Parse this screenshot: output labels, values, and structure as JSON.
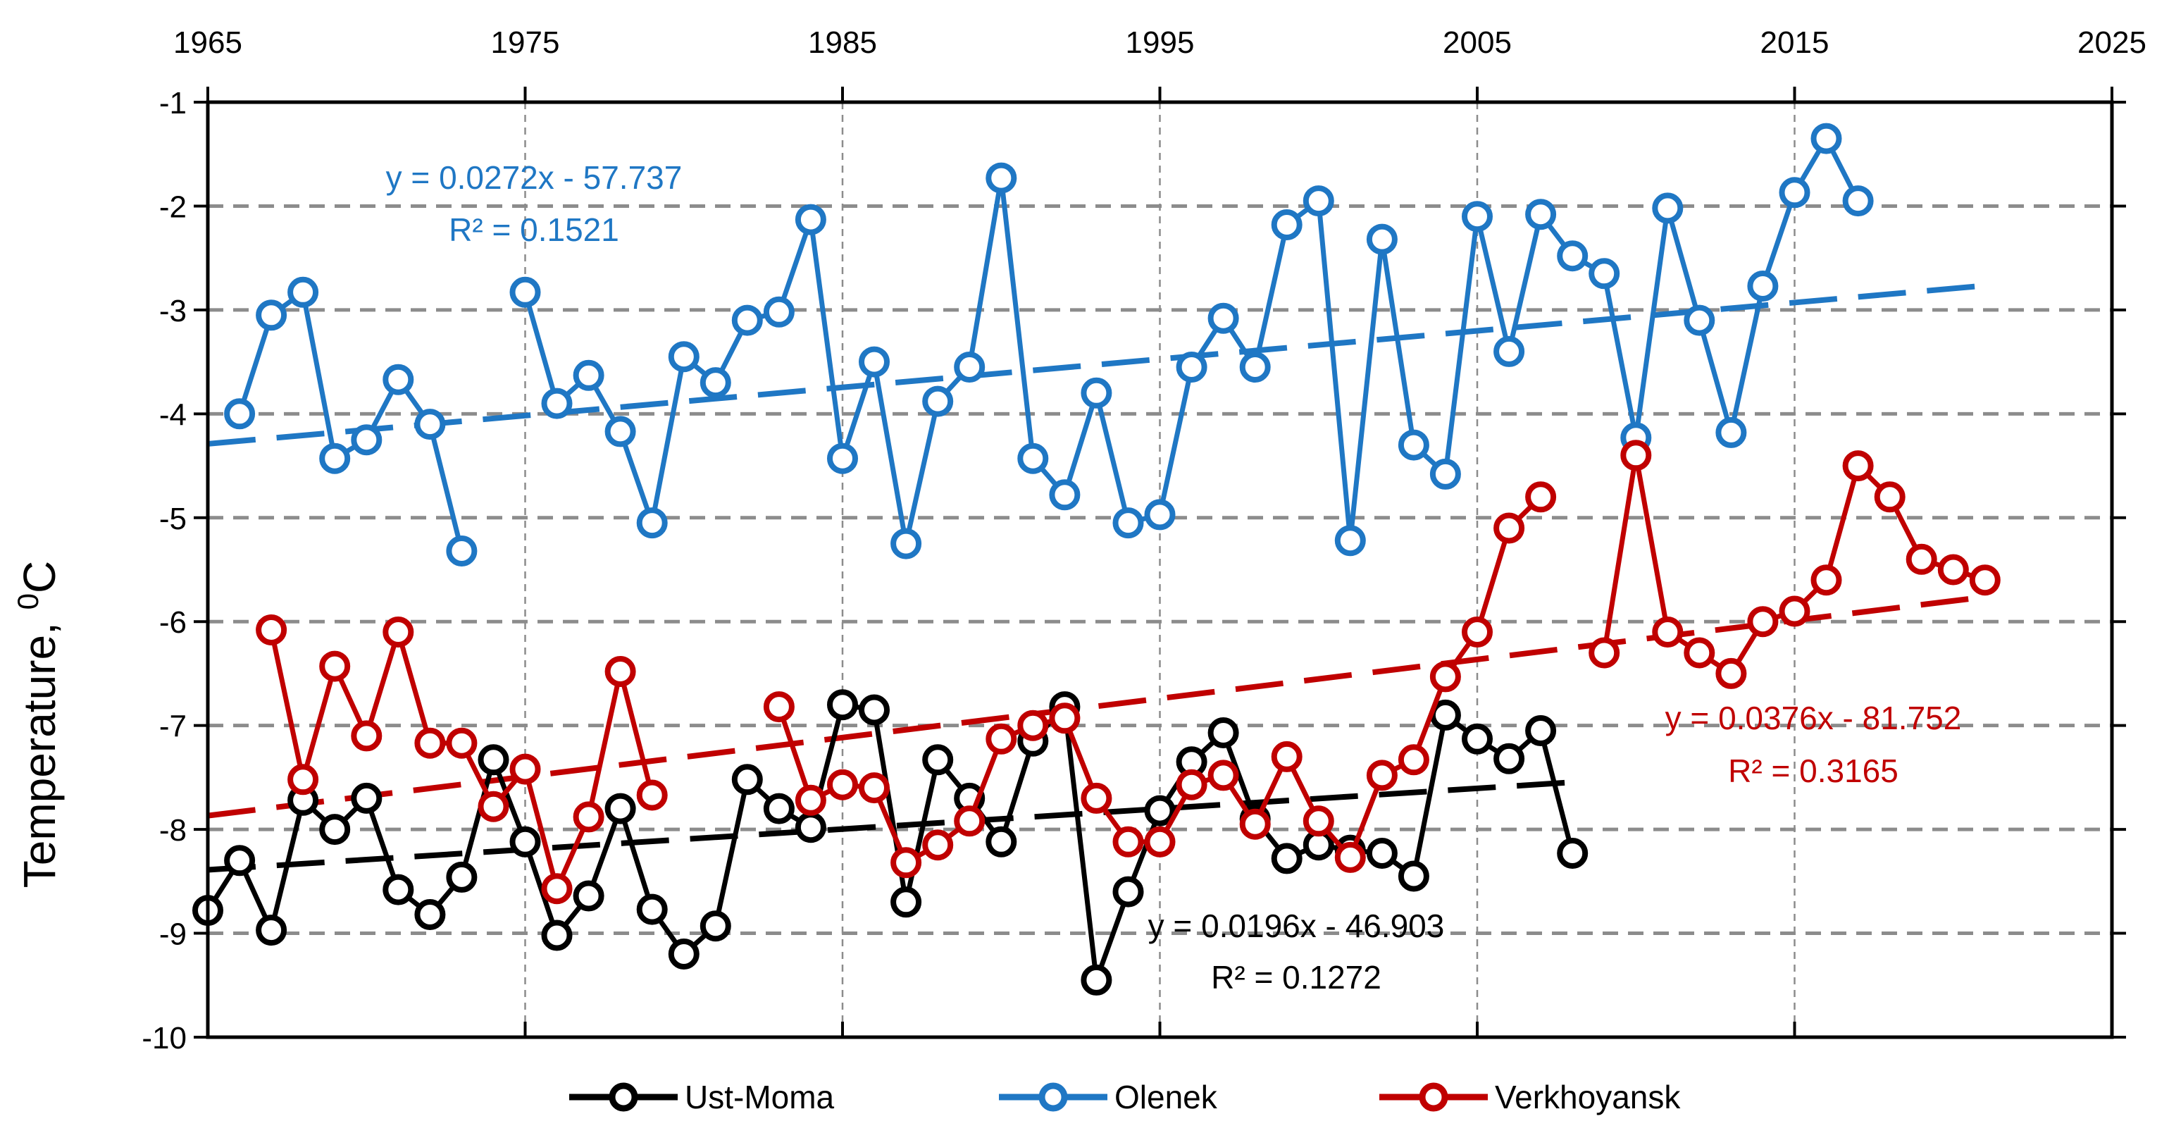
{
  "chart_data": {
    "type": "line",
    "ylabel": "Temperature, ",
    "ylabel_sup": "0",
    "ylabel_unit": "C",
    "xlim": [
      1965,
      2025
    ],
    "ylim": [
      -10,
      -1
    ],
    "xticks": [
      "1965",
      "1975",
      "1985",
      "1995",
      "2005",
      "2015",
      "2025"
    ],
    "yticks": [
      "-1",
      "-2",
      "-3",
      "-4",
      "-5",
      "-6",
      "-7",
      "-8",
      "-9",
      "-10"
    ],
    "grid": true,
    "legend_position": "bottom",
    "series": [
      {
        "name": "Ust-Moma",
        "color": "#000000",
        "x": [
          1965,
          1966,
          1967,
          1968,
          1969,
          1970,
          1971,
          1972,
          1973,
          1974,
          1975,
          1976,
          1977,
          1978,
          1979,
          1980,
          1981,
          1982,
          1983,
          1984,
          1985,
          1986,
          1987,
          1988,
          1989,
          1990,
          1991,
          1992,
          1993,
          1994,
          1995,
          1996,
          1997,
          1998,
          1999,
          2000,
          2001,
          2002,
          2003,
          2004,
          2005,
          2006,
          2007,
          2008
        ],
        "y": [
          -8.78,
          -8.3,
          -8.97,
          -7.72,
          -8.0,
          -7.7,
          -8.58,
          -8.82,
          -8.46,
          -7.33,
          -8.12,
          -9.02,
          -8.64,
          -7.8,
          -8.77,
          -9.2,
          -8.93,
          -7.52,
          -7.8,
          -7.98,
          -6.8,
          -6.85,
          -8.7,
          -7.33,
          -7.7,
          -8.12,
          -7.15,
          -6.82,
          -9.45,
          -8.6,
          -7.82,
          -7.35,
          -7.07,
          -7.9,
          -8.28,
          -8.15,
          -8.2,
          -8.23,
          -8.45,
          -6.9,
          -7.13,
          -7.32,
          -7.05,
          -8.23
        ]
      },
      {
        "name": "Olenek",
        "color": "#1F77C4",
        "x": [
          1966,
          1967,
          1968,
          1969,
          1970,
          1971,
          1972,
          1973,
          null,
          1975,
          1976,
          1977,
          1978,
          1979,
          1980,
          1981,
          1982,
          1983,
          1984,
          1985,
          1986,
          1987,
          1988,
          1989,
          1990,
          1991,
          1992,
          1993,
          1994,
          1995,
          1996,
          1997,
          1998,
          1999,
          2000,
          2001,
          2002,
          2003,
          2004,
          2005,
          2006,
          2007,
          2008,
          2009,
          2010,
          2011,
          2012,
          2013,
          2014,
          2015,
          2016,
          2017
        ],
        "y": [
          -4.0,
          -3.05,
          -2.83,
          -4.43,
          -4.25,
          -3.67,
          -4.1,
          -5.32,
          null,
          -2.83,
          -3.9,
          -3.63,
          -4.17,
          -5.05,
          -3.45,
          -3.7,
          -3.1,
          -3.02,
          -2.13,
          -4.43,
          -3.5,
          -5.25,
          -3.88,
          -3.55,
          -1.73,
          -4.43,
          -4.78,
          -3.8,
          -5.05,
          -4.97,
          -3.55,
          -3.08,
          -3.55,
          -2.18,
          -1.95,
          -5.22,
          -2.32,
          -4.3,
          -4.58,
          -2.1,
          -3.4,
          -2.08,
          -2.48,
          -2.65,
          -4.23,
          -2.02,
          -3.1,
          -4.18,
          -2.77,
          -1.87,
          -1.35,
          -1.95
        ]
      },
      {
        "name": "Verkhoyansk",
        "color": "#C00000",
        "x": [
          1967,
          1968,
          1969,
          1970,
          1971,
          1972,
          1973,
          1974,
          1975,
          1976,
          1977,
          1978,
          1979,
          null,
          1983,
          1984,
          1985,
          1986,
          1987,
          1988,
          1989,
          1990,
          1991,
          1992,
          1993,
          1994,
          1995,
          1996,
          1997,
          1998,
          1999,
          2000,
          2001,
          2002,
          2003,
          2004,
          2005,
          2006,
          2007,
          null,
          2009,
          2010,
          2011,
          2012,
          2013,
          2014,
          2015,
          2016,
          2017,
          2018,
          2019,
          2020,
          2021
        ],
        "y": [
          -6.08,
          -7.52,
          -6.43,
          -7.1,
          -6.1,
          -7.17,
          -7.17,
          -7.78,
          -7.42,
          -8.57,
          -7.88,
          -6.48,
          -7.67,
          null,
          -6.82,
          -7.72,
          -7.57,
          -7.6,
          -8.32,
          -8.15,
          -7.92,
          -7.13,
          -7.0,
          -6.93,
          -7.7,
          -8.12,
          -8.12,
          -7.57,
          -7.48,
          -7.95,
          -7.3,
          -7.92,
          -8.27,
          -7.48,
          -7.33,
          -6.53,
          -6.1,
          -5.1,
          -4.8,
          null,
          -6.3,
          -4.4,
          -6.1,
          -6.3,
          -6.5,
          -6.0,
          -5.9,
          -5.6,
          -4.5,
          -4.8,
          -5.4,
          -5.5,
          -5.6
        ]
      }
    ],
    "trendlines": [
      {
        "series": "Ust-Moma",
        "slope": 0.0196,
        "intercept": -46.903,
        "x_range": [
          1965,
          2008
        ],
        "equation": "y = 0.0196x - 46.903",
        "r2": "R² = 0.1272"
      },
      {
        "series": "Olenek",
        "slope": 0.0272,
        "intercept": -57.737,
        "x_range": [
          1965,
          2021
        ],
        "equation": "y = 0.0272x - 57.737",
        "r2": "R² = 0.1521"
      },
      {
        "series": "Verkhoyansk",
        "slope": 0.0376,
        "intercept": -81.752,
        "x_range": [
          1965,
          2021
        ],
        "equation": "y = 0.0376x - 81.752",
        "r2": "R² = 0.3165"
      }
    ]
  }
}
